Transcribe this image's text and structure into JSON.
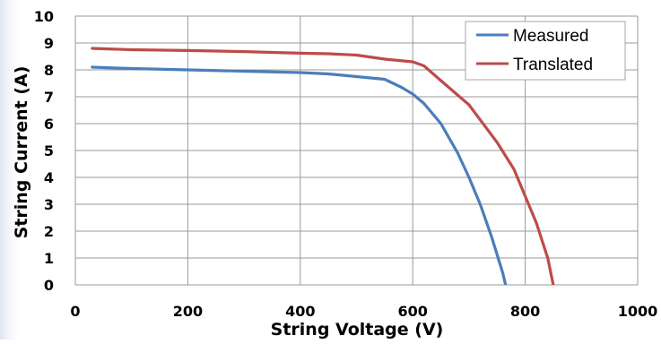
{
  "chart_data": {
    "type": "line",
    "xlabel": "String Voltage (V)",
    "ylabel": "String Current (A)",
    "xlim": [
      0,
      1000
    ],
    "ylim": [
      0,
      10
    ],
    "x_ticks": [
      "0",
      "200",
      "400",
      "600",
      "800",
      "1000"
    ],
    "y_ticks": [
      "0",
      "1",
      "2",
      "3",
      "4",
      "5",
      "6",
      "7",
      "8",
      "9",
      "10"
    ],
    "grid": true,
    "legend_position": "top-right",
    "series": [
      {
        "name": "Measured",
        "color": "#4a7ebb",
        "x": [
          30,
          100,
          200,
          300,
          400,
          450,
          500,
          550,
          580,
          600,
          620,
          650,
          680,
          700,
          720,
          740,
          760,
          765
        ],
        "y": [
          8.1,
          8.05,
          8.0,
          7.95,
          7.9,
          7.85,
          7.75,
          7.65,
          7.35,
          7.1,
          6.75,
          6.0,
          4.9,
          4.0,
          3.0,
          1.8,
          0.45,
          0.0
        ]
      },
      {
        "name": "Translated",
        "color": "#be4b48",
        "x": [
          30,
          100,
          200,
          300,
          400,
          450,
          500,
          550,
          600,
          620,
          650,
          700,
          750,
          780,
          800,
          820,
          840,
          850
        ],
        "y": [
          8.8,
          8.75,
          8.72,
          8.68,
          8.62,
          8.6,
          8.55,
          8.4,
          8.3,
          8.15,
          7.6,
          6.7,
          5.3,
          4.3,
          3.3,
          2.3,
          1.0,
          0.0
        ]
      }
    ]
  }
}
